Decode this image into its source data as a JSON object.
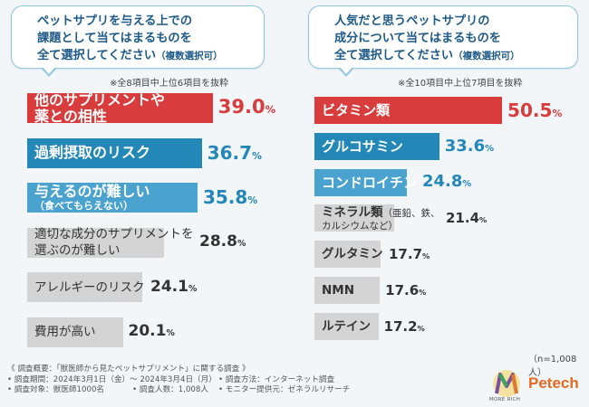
{
  "colors": {
    "red": "#d93c3c",
    "blue": "#2387b8",
    "lightblue": "#4aa2cf",
    "gray": "#d4d4d4",
    "title_blue": "#1e5a88"
  },
  "left_panel": {
    "question_lines": [
      "ペットサプリを与える上での",
      "課題として当てはまるものを"
    ],
    "question_last": "全て選択してください",
    "question_suffix": "（複数選択可）",
    "note": "※全8項目中上位6項目を抜粋"
  },
  "right_panel": {
    "question_lines": [
      "人気だと思うペットサプリの",
      "成分について当てはまるものを"
    ],
    "question_last": "全て選択してください",
    "question_suffix": "（複数選択可）",
    "note": "※全10項目中上位7項目を抜粋"
  },
  "chart_data": [
    {
      "type": "bar",
      "orientation": "horizontal",
      "title": "ペットサプリを与える上での課題として当てはまるものを全て選択してください（複数選択可）",
      "unit": "%",
      "items": [
        {
          "label_lines": [
            "他のサプリメントや",
            "薬との相性"
          ],
          "value": 39.0,
          "value_text": "39.0",
          "color_key": "red"
        },
        {
          "label_lines": [
            "過剰摂取のリスク"
          ],
          "value": 36.7,
          "value_text": "36.7",
          "color_key": "blue"
        },
        {
          "label_lines": [
            "与えるのが難しい"
          ],
          "paren": "（食べてもらえない）",
          "value": 35.8,
          "value_text": "35.8",
          "color_key": "lightblue"
        },
        {
          "label_lines": [
            "適切な成分のサプリメントを",
            "選ぶのが難しい"
          ],
          "value": 28.8,
          "value_text": "28.8",
          "color_key": "gray"
        },
        {
          "label_lines": [
            "アレルギーのリスク"
          ],
          "value": 24.1,
          "value_text": "24.1",
          "color_key": "gray"
        },
        {
          "label_lines": [
            "費用が高い"
          ],
          "value": 20.1,
          "value_text": "20.1",
          "color_key": "gray"
        }
      ]
    },
    {
      "type": "bar",
      "orientation": "horizontal",
      "title": "人気だと思うペットサプリの成分について当てはまるものを全て選択してください（複数選択可）",
      "unit": "%",
      "items": [
        {
          "label_lines": [
            "ビタミン類"
          ],
          "value": 50.5,
          "value_text": "50.5",
          "color_key": "red"
        },
        {
          "label_lines": [
            "グルコサミン"
          ],
          "value": 33.6,
          "value_text": "33.6",
          "color_key": "blue"
        },
        {
          "label_lines": [
            "コンドロイチン"
          ],
          "value": 24.8,
          "value_text": "24.8",
          "color_key": "lightblue"
        },
        {
          "label_lines": [
            "ミネラル類"
          ],
          "label_small": [
            "（亜鉛、鉄、",
            "カルシウムなど）"
          ],
          "value": 21.4,
          "value_text": "21.4",
          "color_key": "gray"
        },
        {
          "label_lines": [
            "グルタミン"
          ],
          "value": 17.7,
          "value_text": "17.7",
          "color_key": "gray"
        },
        {
          "label_lines": [
            "NMN"
          ],
          "value": 17.6,
          "value_text": "17.6",
          "color_key": "gray"
        },
        {
          "label_lines": [
            "ルテイン"
          ],
          "value": 17.2,
          "value_text": "17.2",
          "color_key": "gray"
        }
      ]
    }
  ],
  "sample_note": "（n=1,008人）",
  "footer": {
    "title": "《 調査概要：「獣医師から見たペットサプリメント」に関する調査 》",
    "period": "• 調査期間：2024年3月1日（金）〜 2024年3月4日（月）",
    "method": "• 調査方法：インターネット調査",
    "target": "• 調査対象：獣医師1000名",
    "count": "• 調査人数：1,008人",
    "provider": "• モニター提供元：ゼネラルリサーチ"
  },
  "logos": {
    "left_text": "MORE RICH",
    "right_text": "Petech"
  }
}
